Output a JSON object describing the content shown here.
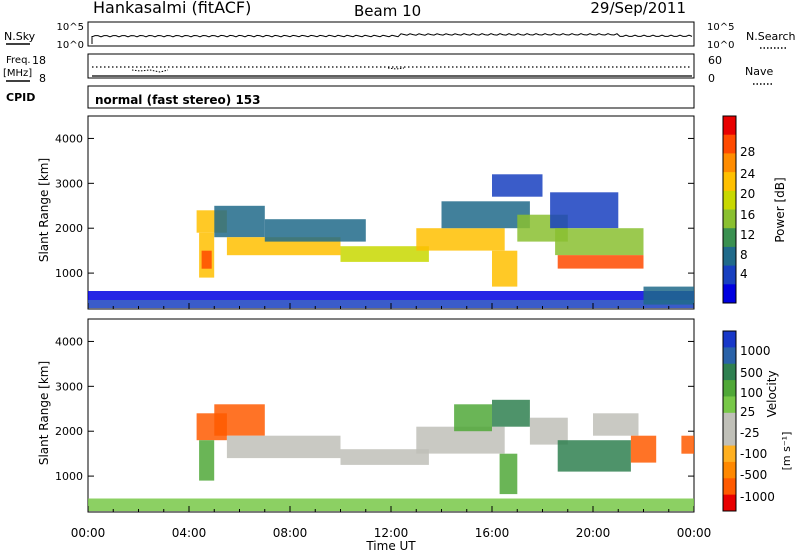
{
  "header": {
    "title": "Hankasalmi (fitACF)",
    "beam": "Beam 10",
    "date": "29/Sep/2011"
  },
  "panels": {
    "nsky": {
      "label": "N.Sky",
      "right_label": "N.Search",
      "left_ticks": [
        "10^5",
        "10^0"
      ],
      "right_ticks": [
        "10^5",
        "10^0"
      ]
    },
    "freq": {
      "label_line1": "Freq.",
      "label_line2": "[MHz]",
      "left_ticks": [
        "18",
        "8"
      ],
      "right_ticks": [
        "60",
        "0"
      ],
      "right_label": "Nave"
    },
    "cpid": {
      "label": "CPID",
      "value": "normal (fast stereo) 153"
    }
  },
  "colorbars": {
    "power": {
      "label": "Power [dB]",
      "ticks": [
        "28",
        "24",
        "20",
        "16",
        "12",
        "8",
        "4"
      ],
      "colors": [
        "#e80000",
        "#ff4a00",
        "#ff8c00",
        "#ffc000",
        "#c8d800",
        "#8ac030",
        "#3a9050",
        "#206a8a",
        "#1840c0",
        "#0000e0"
      ]
    },
    "velocity": {
      "label": "Velocity",
      "unit": "[m s⁻¹]",
      "ticks": [
        "1000",
        "500",
        "100",
        "25",
        "-25",
        "-100",
        "-500",
        "-1000"
      ],
      "colors": [
        "#1838c8",
        "#2a62a8",
        "#2f8050",
        "#50a838",
        "#78c848",
        "#c0c0b8",
        "#c0c0b8",
        "#ffb020",
        "#ff8800",
        "#ff5a00",
        "#e80000"
      ]
    }
  },
  "chart_data": [
    {
      "type": "heatmap",
      "name": "power",
      "ylabel": "Slant Range [km]",
      "yticks": [
        "4000",
        "3000",
        "2000",
        "1000"
      ],
      "ylim": [
        200,
        4500
      ],
      "xlim": [
        0,
        24
      ],
      "cells": [
        {
          "x0": 0.0,
          "x1": 24.0,
          "y0": 220,
          "y1": 400,
          "v": 6
        },
        {
          "x0": 0.0,
          "x1": 24.0,
          "y0": 400,
          "y1": 600,
          "v": 4
        },
        {
          "x0": 4.3,
          "x1": 5.5,
          "y0": 1900,
          "y1": 2400,
          "v": 20
        },
        {
          "x0": 4.4,
          "x1": 5.0,
          "y0": 900,
          "y1": 1900,
          "v": 22
        },
        {
          "x0": 4.5,
          "x1": 4.9,
          "y0": 1100,
          "y1": 1500,
          "v": 28
        },
        {
          "x0": 5.0,
          "x1": 7.0,
          "y0": 1800,
          "y1": 2500,
          "v": 10
        },
        {
          "x0": 5.5,
          "x1": 10.0,
          "y0": 1400,
          "y1": 1800,
          "v": 20
        },
        {
          "x0": 7.0,
          "x1": 11.0,
          "y0": 1700,
          "y1": 2200,
          "v": 8
        },
        {
          "x0": 10.0,
          "x1": 13.5,
          "y0": 1250,
          "y1": 1600,
          "v": 18
        },
        {
          "x0": 13.0,
          "x1": 16.5,
          "y0": 1500,
          "y1": 2000,
          "v": 22
        },
        {
          "x0": 14.0,
          "x1": 17.5,
          "y0": 2000,
          "y1": 2600,
          "v": 10
        },
        {
          "x0": 16.0,
          "x1": 18.0,
          "y0": 2700,
          "y1": 3200,
          "v": 6
        },
        {
          "x0": 16.0,
          "x1": 17.0,
          "y0": 700,
          "y1": 1500,
          "v": 20
        },
        {
          "x0": 17.0,
          "x1": 19.0,
          "y0": 1700,
          "y1": 2300,
          "v": 16
        },
        {
          "x0": 18.3,
          "x1": 21.0,
          "y0": 2000,
          "y1": 2800,
          "v": 6
        },
        {
          "x0": 18.6,
          "x1": 22.0,
          "y0": 1100,
          "y1": 1400,
          "v": 28
        },
        {
          "x0": 18.5,
          "x1": 22.0,
          "y0": 1400,
          "y1": 2000,
          "v": 16
        },
        {
          "x0": 22.0,
          "x1": 24.0,
          "y0": 300,
          "y1": 700,
          "v": 8
        }
      ]
    },
    {
      "type": "heatmap",
      "name": "velocity",
      "xlabel": "Time UT",
      "xticks": [
        "00:00",
        "04:00",
        "08:00",
        "12:00",
        "16:00",
        "20:00",
        "00:00"
      ],
      "ylabel": "Slant Range [km]",
      "yticks": [
        "4000",
        "3000",
        "2000",
        "1000"
      ],
      "ylim": [
        200,
        4500
      ],
      "xlim": [
        0,
        24
      ],
      "cells": [
        {
          "x0": 0.0,
          "x1": 24.0,
          "y0": 220,
          "y1": 500,
          "v": 80
        },
        {
          "x0": 4.3,
          "x1": 5.5,
          "y0": 1800,
          "y1": 2400,
          "v": -300
        },
        {
          "x0": 4.4,
          "x1": 5.0,
          "y0": 900,
          "y1": 1800,
          "v": 150
        },
        {
          "x0": 5.0,
          "x1": 7.0,
          "y0": 1900,
          "y1": 2600,
          "v": -200
        },
        {
          "x0": 5.5,
          "x1": 10.0,
          "y0": 1400,
          "y1": 1900,
          "v": 0
        },
        {
          "x0": 10.0,
          "x1": 13.5,
          "y0": 1250,
          "y1": 1600,
          "v": 0
        },
        {
          "x0": 13.0,
          "x1": 16.5,
          "y0": 1500,
          "y1": 2100,
          "v": 0
        },
        {
          "x0": 14.5,
          "x1": 16.0,
          "y0": 2000,
          "y1": 2600,
          "v": 200
        },
        {
          "x0": 16.0,
          "x1": 17.5,
          "y0": 2100,
          "y1": 2700,
          "v": 300
        },
        {
          "x0": 16.3,
          "x1": 17.0,
          "y0": 600,
          "y1": 1500,
          "v": 200
        },
        {
          "x0": 17.5,
          "x1": 19.0,
          "y0": 1700,
          "y1": 2300,
          "v": 0
        },
        {
          "x0": 18.6,
          "x1": 21.5,
          "y0": 1100,
          "y1": 1800,
          "v": 400
        },
        {
          "x0": 20.0,
          "x1": 21.8,
          "y0": 1900,
          "y1": 2400,
          "v": 0
        },
        {
          "x0": 21.5,
          "x1": 22.5,
          "y0": 1300,
          "y1": 1900,
          "v": -150
        },
        {
          "x0": 23.5,
          "x1": 24.0,
          "y0": 1500,
          "y1": 1900,
          "v": -400
        }
      ]
    }
  ]
}
